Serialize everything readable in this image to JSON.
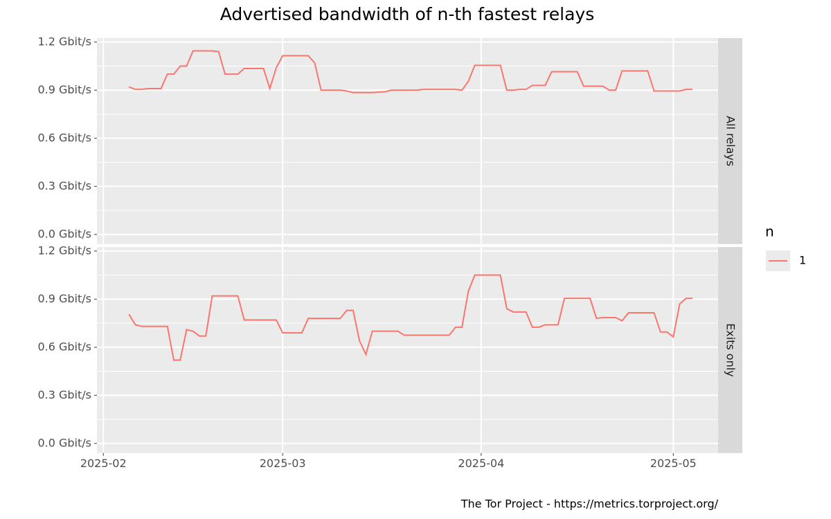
{
  "chart_data": {
    "type": "line",
    "title": "Advertised bandwidth of n-th fastest relays",
    "caption": "The Tor Project - https://metrics.torproject.org/",
    "legend": {
      "title": "n",
      "name": "1"
    },
    "color": "#f8766d",
    "grid": true,
    "x": [
      "2025-02-05",
      "2025-02-06",
      "2025-02-07",
      "2025-02-08",
      "2025-02-09",
      "2025-02-10",
      "2025-02-11",
      "2025-02-12",
      "2025-02-13",
      "2025-02-14",
      "2025-02-15",
      "2025-02-16",
      "2025-02-17",
      "2025-02-18",
      "2025-02-19",
      "2025-02-20",
      "2025-02-21",
      "2025-02-22",
      "2025-02-23",
      "2025-02-24",
      "2025-02-25",
      "2025-02-26",
      "2025-02-27",
      "2025-02-28",
      "2025-03-01",
      "2025-03-02",
      "2025-03-03",
      "2025-03-04",
      "2025-03-05",
      "2025-03-06",
      "2025-03-07",
      "2025-03-08",
      "2025-03-09",
      "2025-03-10",
      "2025-03-11",
      "2025-03-12",
      "2025-03-13",
      "2025-03-14",
      "2025-03-15",
      "2025-03-16",
      "2025-03-17",
      "2025-03-18",
      "2025-03-19",
      "2025-03-20",
      "2025-03-21",
      "2025-03-22",
      "2025-03-23",
      "2025-03-24",
      "2025-03-25",
      "2025-03-26",
      "2025-03-27",
      "2025-03-28",
      "2025-03-29",
      "2025-03-30",
      "2025-03-31",
      "2025-04-01",
      "2025-04-02",
      "2025-04-03",
      "2025-04-04",
      "2025-04-05",
      "2025-04-06",
      "2025-04-07",
      "2025-04-08",
      "2025-04-09",
      "2025-04-10",
      "2025-04-11",
      "2025-04-12",
      "2025-04-13",
      "2025-04-14",
      "2025-04-15",
      "2025-04-16",
      "2025-04-17",
      "2025-04-18",
      "2025-04-19",
      "2025-04-20",
      "2025-04-21",
      "2025-04-22",
      "2025-04-23",
      "2025-04-24",
      "2025-04-25",
      "2025-04-26",
      "2025-04-27",
      "2025-04-28",
      "2025-04-29",
      "2025-04-30",
      "2025-05-01",
      "2025-05-02",
      "2025-05-03",
      "2025-05-04"
    ],
    "facets": [
      {
        "label": "All relays",
        "values": [
          0.92,
          0.905,
          0.905,
          0.91,
          0.91,
          0.91,
          1.0,
          1.0,
          1.05,
          1.05,
          1.145,
          1.145,
          1.145,
          1.145,
          1.14,
          1.0,
          1.0,
          1.0,
          1.035,
          1.035,
          1.035,
          1.035,
          0.91,
          1.04,
          1.115,
          1.115,
          1.115,
          1.115,
          1.115,
          1.07,
          0.9,
          0.9,
          0.9,
          0.9,
          0.895,
          0.885,
          0.885,
          0.885,
          0.885,
          0.888,
          0.89,
          0.9,
          0.9,
          0.9,
          0.9,
          0.9,
          0.905,
          0.905,
          0.905,
          0.905,
          0.905,
          0.905,
          0.9,
          0.955,
          1.055,
          1.055,
          1.055,
          1.055,
          1.055,
          0.9,
          0.9,
          0.905,
          0.905,
          0.93,
          0.93,
          0.93,
          1.015,
          1.015,
          1.015,
          1.015,
          1.015,
          0.925,
          0.925,
          0.925,
          0.925,
          0.9,
          0.9,
          1.02,
          1.02,
          1.02,
          1.02,
          1.02,
          0.895,
          0.895,
          0.895,
          0.895,
          0.895,
          0.905,
          0.905
        ]
      },
      {
        "label": "Exits only",
        "values": [
          0.805,
          0.74,
          0.73,
          0.73,
          0.73,
          0.73,
          0.73,
          0.52,
          0.52,
          0.71,
          0.7,
          0.67,
          0.67,
          0.92,
          0.92,
          0.92,
          0.92,
          0.92,
          0.77,
          0.77,
          0.77,
          0.77,
          0.77,
          0.77,
          0.69,
          0.69,
          0.69,
          0.69,
          0.78,
          0.78,
          0.78,
          0.78,
          0.78,
          0.78,
          0.83,
          0.83,
          0.64,
          0.555,
          0.7,
          0.7,
          0.7,
          0.7,
          0.7,
          0.675,
          0.675,
          0.675,
          0.675,
          0.675,
          0.675,
          0.675,
          0.675,
          0.725,
          0.725,
          0.95,
          1.05,
          1.05,
          1.05,
          1.05,
          1.05,
          0.84,
          0.82,
          0.82,
          0.82,
          0.725,
          0.725,
          0.74,
          0.74,
          0.74,
          0.905,
          0.905,
          0.905,
          0.905,
          0.905,
          0.78,
          0.785,
          0.785,
          0.785,
          0.765,
          0.815,
          0.815,
          0.815,
          0.815,
          0.815,
          0.695,
          0.695,
          0.665,
          0.87,
          0.905,
          0.905
        ]
      }
    ],
    "xlim": [
      "2025-01-31",
      "2025-05-08"
    ],
    "xticks": [
      {
        "value": "2025-02-01",
        "label": "2025-02"
      },
      {
        "value": "2025-03-01",
        "label": "2025-03"
      },
      {
        "value": "2025-04-01",
        "label": "2025-04"
      },
      {
        "value": "2025-05-01",
        "label": "2025-05"
      }
    ],
    "ylim": [
      -0.06,
      1.225
    ],
    "yticks": [
      {
        "value": 0,
        "label": "0.0 Gbit/s"
      },
      {
        "value": 0.3,
        "label": "0.3 Gbit/s"
      },
      {
        "value": 0.6,
        "label": "0.6 Gbit/s"
      },
      {
        "value": 0.9,
        "label": "0.9 Gbit/s"
      },
      {
        "value": 1.2,
        "label": "1.2 Gbit/s"
      }
    ],
    "yminor": [
      0.15,
      0.45,
      0.75,
      1.05
    ]
  }
}
